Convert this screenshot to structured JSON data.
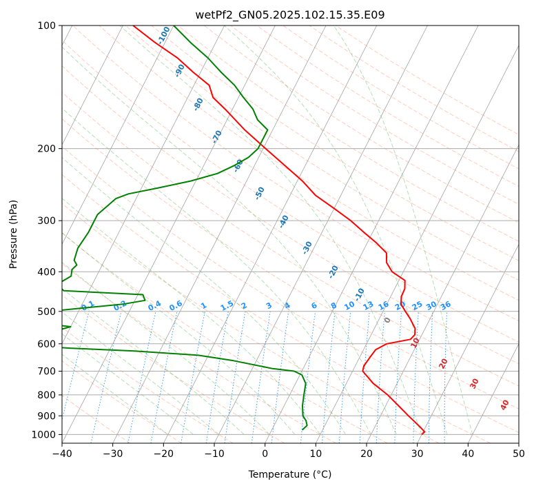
{
  "chart_data": {
    "type": "skew-t",
    "title": "wetPf2_GN05.2025.102.15.35.E09",
    "xlabel": "Temperature (°C)",
    "ylabel": "Pressure (hPa)",
    "xlim": [
      -40,
      50
    ],
    "ylim_hpa": [
      1050,
      100
    ],
    "x_ticks": [
      -40,
      -30,
      -20,
      -10,
      0,
      10,
      20,
      30,
      40,
      50
    ],
    "x_tick_labels": [
      "−40",
      "−30",
      "−20",
      "−10",
      "0",
      "10",
      "20",
      "30",
      "40",
      "50"
    ],
    "y_ticks": [
      100,
      200,
      300,
      400,
      500,
      600,
      700,
      800,
      900,
      1000
    ],
    "y_tick_labels": [
      "100",
      "200",
      "300",
      "400",
      "500",
      "600",
      "700",
      "800",
      "900",
      "1000"
    ],
    "grid": true,
    "isotherm_labels": {
      "values": [
        -100,
        -90,
        -80,
        -70,
        -60,
        -50,
        -40,
        -30,
        -20,
        -10,
        0,
        10,
        20,
        30,
        40
      ],
      "labels": [
        "-100",
        "-90",
        "-80",
        "-70",
        "-60",
        "-50",
        "-40",
        "-30",
        "-20",
        "-10",
        "0",
        "10",
        "20",
        "30",
        "40"
      ],
      "colors": {
        "cold": "#1f77b4",
        "zero": "#808080",
        "warm": "#d62728"
      }
    },
    "mixing_ratio_labels": {
      "values": [
        0.1,
        0.2,
        0.4,
        0.6,
        1,
        1.5,
        2,
        3,
        4,
        6,
        8,
        10,
        13,
        16,
        20,
        25,
        30,
        36
      ],
      "labels": [
        "0.1",
        "0.2",
        "0.4",
        "0.6",
        "1",
        "1.5",
        "2",
        "3",
        "4",
        "6",
        "8",
        "10",
        "13",
        "16",
        "20",
        "25",
        "30",
        "36"
      ],
      "label_pressure_hpa": 500,
      "color": "#1e90ff"
    },
    "series": [
      {
        "name": "Temperature",
        "color": "#ff0000",
        "pressure": [
          1000,
          985,
          960,
          925,
          900,
          850,
          800,
          750,
          700,
          680,
          650,
          620,
          600,
          585,
          570,
          550,
          520,
          500,
          480,
          460,
          440,
          420,
          400,
          380,
          360,
          340,
          320,
          300,
          280,
          260,
          240,
          220,
          200,
          180,
          160,
          150,
          140,
          130,
          120,
          110,
          100
        ],
        "temp_c": [
          30.0,
          30.3,
          29.0,
          27.0,
          25.5,
          22.5,
          19.3,
          15.3,
          12.0,
          11.7,
          12.0,
          12.4,
          14.0,
          18.2,
          18.6,
          18.0,
          16.0,
          14.4,
          12.8,
          12.1,
          12.0,
          11.2,
          7.8,
          5.8,
          4.8,
          1.8,
          -1.8,
          -5.5,
          -10.0,
          -15.0,
          -19.0,
          -24.0,
          -29.5,
          -35.5,
          -41.5,
          -45.0,
          -47.0,
          -51.5,
          -56.0,
          -62.0,
          -68.0
        ]
      },
      {
        "name": "Dewpoint",
        "color": "#008000",
        "pressure": [
          975,
          950,
          925,
          900,
          850,
          800,
          750,
          715,
          700,
          690,
          660,
          640,
          625,
          615,
          605,
          595,
          580,
          565,
          555,
          545,
          540,
          530,
          515,
          505,
          500,
          480,
          470,
          455,
          445,
          430,
          410,
          395,
          385,
          375,
          350,
          320,
          290,
          265,
          258,
          250,
          240,
          230,
          220,
          210,
          200,
          180,
          170,
          160,
          150,
          140,
          130,
          120,
          110,
          100
        ],
        "dewpoint_c": [
          6.0,
          6.5,
          5.8,
          4.7,
          3.6,
          2.8,
          2.0,
          0.4,
          -1.5,
          -6.0,
          -14.5,
          -22.0,
          -35.0,
          -48.0,
          -58.0,
          -63.0,
          -66.0,
          -66.0,
          -52.0,
          -50.0,
          -53.0,
          -56.0,
          -61.0,
          -60.0,
          -56.0,
          -42.0,
          -38.0,
          -39.0,
          -55.0,
          -57.0,
          -55.0,
          -55.5,
          -55.0,
          -56.0,
          -56.5,
          -56.0,
          -56.0,
          -54.0,
          -52.0,
          -47.0,
          -41.0,
          -36.5,
          -34.0,
          -32.0,
          -31.0,
          -31.0,
          -34.0,
          -36.0,
          -39.0,
          -42.0,
          -46.0,
          -50.0,
          -55.0,
          -60.0
        ]
      }
    ]
  }
}
